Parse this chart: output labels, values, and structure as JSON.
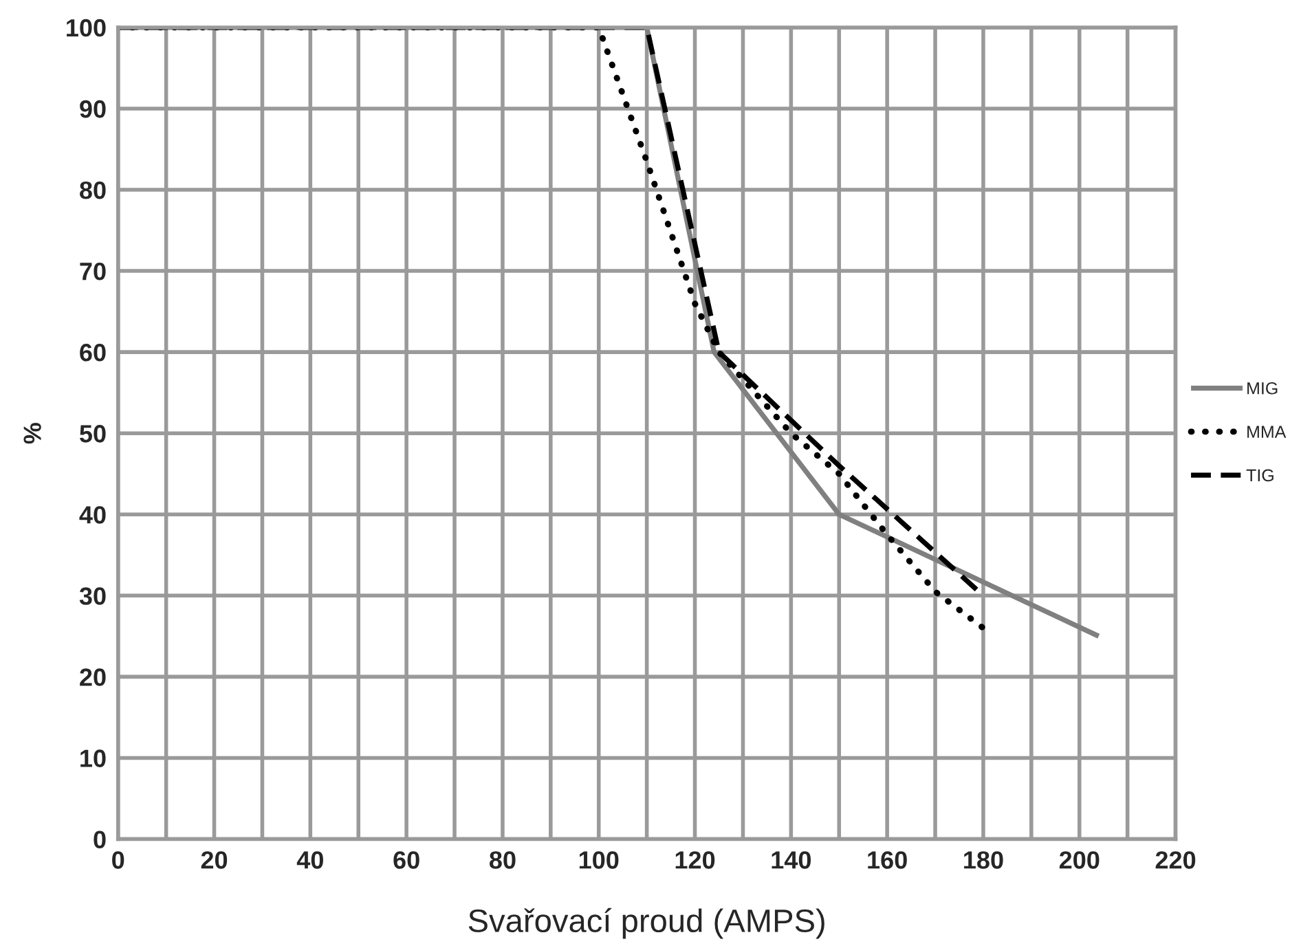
{
  "chart_data": {
    "type": "line",
    "xlabel": "Svařovací proud (AMPS)",
    "ylabel": "%",
    "xlim": [
      0,
      220
    ],
    "ylim": [
      0,
      100
    ],
    "xticks": [
      0,
      {
        "value": 10,
        "label": null
      },
      20,
      {
        "value": 30,
        "label": null
      },
      40,
      {
        "value": 50,
        "label": null
      },
      60,
      {
        "value": 70,
        "label": null
      },
      80,
      {
        "value": 90,
        "label": null
      },
      100,
      {
        "value": 110,
        "label": null
      },
      120,
      {
        "value": 130,
        "label": null
      },
      140,
      {
        "value": 150,
        "label": null
      },
      160,
      {
        "value": 170,
        "label": null
      },
      180,
      {
        "value": 190,
        "label": null
      },
      200,
      {
        "value": 210,
        "label": null
      },
      220
    ],
    "yticks": [
      0,
      10,
      20,
      30,
      40,
      50,
      60,
      70,
      80,
      90,
      100
    ],
    "grid": true,
    "legend": "right",
    "marker": "none",
    "series": [
      {
        "name": "MIG",
        "color": "#808080",
        "line_style": "solid",
        "x": [
          0,
          110,
          124,
          150,
          204
        ],
        "values": [
          100,
          100,
          60,
          40,
          25
        ]
      },
      {
        "name": "MMA",
        "color": "#000000",
        "line_style": "dotted",
        "x": [
          0,
          100,
          110,
          120,
          125,
          140,
          150,
          160,
          170,
          180
        ],
        "values": [
          100,
          100,
          83.5,
          66,
          60,
          50,
          45,
          37.5,
          30.5,
          26
        ]
      },
      {
        "name": "TIG",
        "color": "#000000",
        "line_style": "dashed",
        "x": [
          0,
          110,
          125,
          150,
          180
        ],
        "values": [
          100,
          100,
          60,
          46,
          30
        ]
      }
    ]
  }
}
